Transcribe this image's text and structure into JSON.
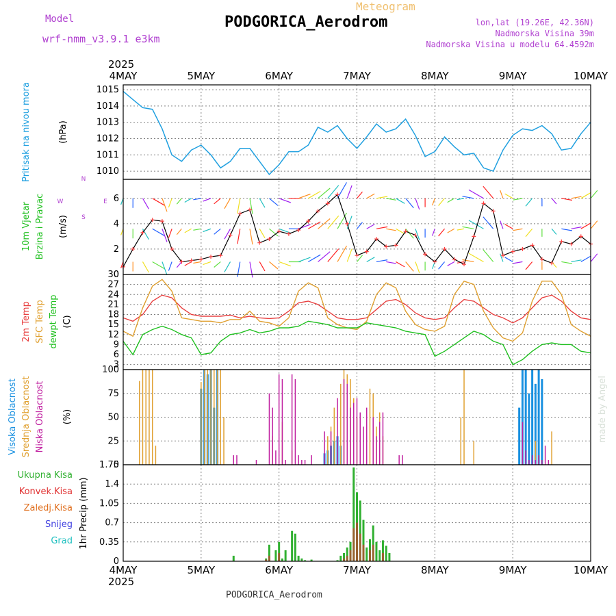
{
  "header": {
    "title": "PODGORICA_Aerodrom",
    "subtitle": "Meteogram",
    "model_label": "Model",
    "model_name": "wrf-nmm_v3.9.1 e3km",
    "lonlat": "lon,lat (19.26E, 42.36N)",
    "altitude": "Nadmorska Visina 39m",
    "model_altitude": "Nadmorska Visina u modelu 64.4592m",
    "footer": "PODGORICA_Aerodrom",
    "credit": "made by Angel",
    "year_top": "2025",
    "year_bottom": "2025"
  },
  "colors": {
    "pressure": "#20a0e0",
    "temp2m": "#e84040",
    "sfc_temp": "#e0a030",
    "dewpt": "#20c020",
    "wind_speed": "#000000",
    "wind_marker": "#ff4040",
    "high_cloud": "#1890e0",
    "mid_cloud": "#e0a030",
    "low_cloud": "#c020a0",
    "total_precip": "#30b030",
    "conv_precip": "#e03030",
    "frozen_precip": "#e07020",
    "snow": "#4040e0",
    "graupel": "#20c0c0",
    "grid": "#808080"
  },
  "chart_data": [
    {
      "type": "line",
      "panel": "pressure",
      "ylabel": "Pritisak na nivou mora",
      "yunit": "(hPa)",
      "ylim": [
        1009.5,
        1015.3
      ],
      "yticks": [
        "1010",
        "1011",
        "1012",
        "1013",
        "1014",
        "1015"
      ],
      "xticks": [
        "4MAY",
        "5MAY",
        "6MAY",
        "7MAY",
        "8MAY",
        "9MAY",
        "10MAY"
      ],
      "x_unit": "hours from 4MAY 00UTC",
      "x": [
        0,
        3,
        6,
        9,
        12,
        15,
        18,
        21,
        24,
        27,
        30,
        33,
        36,
        39,
        42,
        45,
        48,
        51,
        54,
        57,
        60,
        63,
        66,
        69,
        72,
        75,
        78,
        81,
        84,
        87,
        90,
        93,
        96,
        99,
        102,
        105,
        108,
        111,
        114,
        117,
        120,
        123,
        126,
        129,
        132,
        135,
        138,
        141,
        144
      ],
      "values": [
        1014.9,
        1014.4,
        1013.9,
        1013.8,
        1012.6,
        1011.0,
        1010.6,
        1011.3,
        1011.6,
        1011.0,
        1010.2,
        1010.6,
        1011.4,
        1011.4,
        1010.6,
        1009.8,
        1010.4,
        1011.2,
        1011.2,
        1011.6,
        1012.7,
        1012.4,
        1012.8,
        1012.0,
        1011.4,
        1012.1,
        1012.9,
        1012.4,
        1012.6,
        1013.2,
        1012.2,
        1010.9,
        1011.2,
        1012.1,
        1011.5,
        1011.0,
        1011.1,
        1010.2,
        1010.0,
        1011.3,
        1012.2,
        1012.6,
        1012.5,
        1012.8,
        1012.3,
        1011.3,
        1011.4,
        1012.3,
        1013.0
      ]
    },
    {
      "type": "line",
      "panel": "wind",
      "ylabel": [
        "10m Vjetar",
        "Brzina i Pravac"
      ],
      "yunit": "(m/s)",
      "ylim": [
        0,
        7.5
      ],
      "yticks": [
        "0",
        "2",
        "4",
        "6"
      ],
      "compass": [
        "N",
        "W",
        "E",
        "S"
      ],
      "x_unit": "hours from 4MAY 00UTC",
      "x": [
        0,
        3,
        6,
        9,
        12,
        15,
        18,
        21,
        24,
        27,
        30,
        33,
        36,
        39,
        42,
        45,
        48,
        51,
        54,
        57,
        60,
        63,
        66,
        69,
        72,
        75,
        78,
        81,
        84,
        87,
        90,
        93,
        96,
        99,
        102,
        105,
        108,
        111,
        114,
        117,
        120,
        123,
        126,
        129,
        132,
        135,
        138,
        141,
        144
      ],
      "values": [
        0.6,
        2.0,
        3.3,
        4.3,
        4.2,
        2.0,
        1.0,
        1.1,
        1.2,
        1.4,
        1.5,
        3.1,
        4.8,
        5.1,
        2.5,
        2.8,
        3.4,
        3.2,
        3.5,
        4.2,
        5.0,
        5.6,
        6.3,
        4.0,
        1.5,
        1.8,
        2.8,
        2.2,
        2.3,
        3.4,
        3.1,
        1.6,
        1.0,
        2.0,
        1.2,
        0.8,
        3.0,
        5.6,
        5.0,
        1.5,
        1.8,
        2.0,
        2.3,
        1.2,
        0.9,
        2.6,
        2.4,
        3.0,
        2.4
      ],
      "directions_deg": [
        200,
        180,
        150,
        120,
        160,
        200,
        220,
        240,
        260,
        250,
        230,
        210,
        190,
        170,
        150,
        130,
        110,
        90,
        70,
        60,
        50,
        40,
        30,
        20,
        40,
        60,
        80,
        100,
        120,
        140,
        160,
        180,
        200,
        220,
        240,
        260,
        280,
        300,
        320,
        340,
        300,
        260,
        220,
        180,
        140,
        100,
        80,
        60,
        40
      ]
    },
    {
      "type": "line",
      "panel": "temperature",
      "ylabel": [
        "2m Temp",
        "SFC Temp",
        "dewpt Temp"
      ],
      "yunit": "(C)",
      "ylim": [
        1.5,
        30
      ],
      "yticks": [
        "3",
        "6",
        "9",
        "12",
        "15",
        "18",
        "21",
        "24",
        "27",
        "30"
      ],
      "x_unit": "hours from 4MAY 00UTC",
      "series": [
        {
          "name": "2m Temp",
          "x": [
            0,
            3,
            6,
            9,
            12,
            15,
            18,
            21,
            24,
            27,
            30,
            33,
            36,
            39,
            42,
            45,
            48,
            51,
            54,
            57,
            60,
            63,
            66,
            69,
            72,
            75,
            78,
            81,
            84,
            87,
            90,
            93,
            96,
            99,
            102,
            105,
            108,
            111,
            114,
            117,
            120,
            123,
            126,
            129,
            132,
            135,
            138,
            141,
            144
          ],
          "values": [
            17,
            16,
            18,
            22,
            23.8,
            23,
            20,
            18,
            17.5,
            17.5,
            17.5,
            17.8,
            17,
            17.5,
            17,
            16.8,
            17,
            19,
            21.5,
            22,
            21,
            19,
            17,
            16.5,
            16.5,
            17,
            19.5,
            22,
            22.5,
            21,
            18.5,
            17,
            16.5,
            17,
            20,
            22.5,
            22,
            20,
            18,
            17,
            15.5,
            17,
            20,
            23,
            23.8,
            22,
            19,
            17,
            16.5
          ]
        },
        {
          "name": "SFC Temp",
          "x": [
            0,
            3,
            6,
            9,
            12,
            15,
            18,
            21,
            24,
            27,
            30,
            33,
            36,
            39,
            42,
            45,
            48,
            51,
            54,
            57,
            60,
            63,
            66,
            69,
            72,
            75,
            78,
            81,
            84,
            87,
            90,
            93,
            96,
            99,
            102,
            105,
            108,
            111,
            114,
            117,
            120,
            123,
            126,
            129,
            132,
            135,
            138,
            141,
            144
          ],
          "values": [
            13,
            11.5,
            20,
            26.5,
            28.5,
            25,
            17,
            16.5,
            16,
            16,
            15.5,
            16.5,
            16.5,
            19,
            16,
            15.5,
            14.5,
            17,
            25,
            27.5,
            26,
            17,
            15,
            14,
            13.5,
            16,
            24,
            27.5,
            26,
            19,
            15,
            13.5,
            13,
            14.5,
            24,
            28,
            27,
            19,
            14,
            11,
            10,
            12.5,
            22,
            28,
            28,
            24,
            15,
            13,
            11.5
          ]
        },
        {
          "name": "dewpt Temp",
          "x": [
            0,
            3,
            6,
            9,
            12,
            15,
            18,
            21,
            24,
            27,
            30,
            33,
            36,
            39,
            42,
            45,
            48,
            51,
            54,
            57,
            60,
            63,
            66,
            69,
            72,
            75,
            78,
            81,
            84,
            87,
            90,
            93,
            96,
            99,
            102,
            105,
            108,
            111,
            114,
            117,
            120,
            123,
            126,
            129,
            132,
            135,
            138,
            141,
            144
          ],
          "values": [
            10,
            6,
            12,
            13.5,
            14.5,
            13.5,
            12,
            11,
            6,
            6.5,
            10,
            12,
            12.5,
            13.5,
            12.5,
            13,
            14,
            14,
            14.5,
            16,
            15.5,
            15,
            14,
            14,
            14,
            15.5,
            15,
            14.5,
            14,
            13,
            12.5,
            12,
            5.5,
            7,
            9,
            11,
            13,
            12,
            10,
            9,
            3,
            4.5,
            7,
            9,
            9.5,
            9,
            9,
            7,
            6.5
          ]
        }
      ]
    },
    {
      "type": "bar",
      "panel": "cloud",
      "ylabel": [
        "Visoka Oblacnost",
        "Srednja Oblacnost",
        "Niska Oblacnost"
      ],
      "yunit": "(%)",
      "ylim": [
        0,
        100
      ],
      "yticks": [
        "0",
        "25",
        "50",
        "75",
        "100"
      ],
      "x_unit": "hours from 4MAY 00UTC",
      "series": [
        {
          "name": "Visoka Oblacnost",
          "x": [
            24,
            25,
            26,
            27,
            28,
            29,
            62,
            63,
            64,
            65,
            66,
            67,
            122,
            123,
            124,
            125,
            126,
            127,
            128,
            129
          ],
          "values": [
            80,
            100,
            95,
            100,
            60,
            100,
            12,
            15,
            20,
            25,
            30,
            20,
            60,
            100,
            100,
            75,
            100,
            85,
            100,
            90
          ]
        },
        {
          "name": "Srednja Oblacnost",
          "x": [
            5,
            6,
            7,
            8,
            9,
            10,
            24,
            25,
            26,
            27,
            28,
            29,
            30,
            31,
            46,
            49,
            52,
            63,
            64,
            65,
            67,
            68,
            69,
            70,
            71,
            72,
            73,
            75,
            76,
            77,
            78,
            79,
            80,
            104,
            105,
            108,
            127,
            128,
            129,
            132
          ],
          "values": [
            88,
            100,
            100,
            100,
            100,
            20,
            87,
            100,
            100,
            100,
            100,
            100,
            100,
            50,
            30,
            45,
            15,
            30,
            40,
            60,
            85,
            100,
            95,
            90,
            70,
            50,
            35,
            55,
            80,
            75,
            40,
            55,
            30,
            50,
            100,
            25,
            25,
            10,
            5,
            35
          ]
        },
        {
          "name": "Niska Oblacnost",
          "x": [
            34,
            35,
            41,
            45,
            46,
            47,
            48,
            49,
            50,
            52,
            53,
            54,
            55,
            56,
            58,
            62,
            64,
            66,
            68,
            69,
            70,
            71,
            72,
            73,
            74,
            75,
            77,
            78,
            79,
            80,
            85,
            86,
            123,
            124,
            125,
            126,
            127,
            128,
            129,
            130,
            131
          ],
          "values": [
            10,
            10,
            5,
            75,
            60,
            15,
            95,
            90,
            5,
            95,
            90,
            10,
            5,
            5,
            10,
            35,
            35,
            70,
            90,
            85,
            60,
            65,
            70,
            55,
            40,
            60,
            50,
            30,
            45,
            55,
            10,
            10,
            45,
            15,
            5,
            10,
            5,
            10,
            5,
            20,
            5
          ]
        }
      ]
    },
    {
      "type": "bar",
      "panel": "precip",
      "ylabel": "1hr Precip (mm)",
      "yticks": [
        "0",
        "0.35",
        "0.7",
        "1.05",
        "1.4",
        "1.75"
      ],
      "ylim": [
        0,
        1.75
      ],
      "legend": [
        "Ukupna Kisa",
        "Konvek.Kisa",
        "Zaledj.Kisa",
        "Snijeg",
        "Grad"
      ],
      "x_unit": "hours from 4MAY 00UTC",
      "series": [
        {
          "name": "Ukupna Kisa",
          "x": [
            34,
            44,
            45,
            47,
            48,
            49,
            50,
            52,
            53,
            54,
            55,
            56,
            58,
            66,
            67,
            68,
            69,
            70,
            71,
            72,
            73,
            74,
            75,
            76,
            77,
            78,
            79,
            80,
            81,
            82
          ],
          "values": [
            0.1,
            0.05,
            0.3,
            0.2,
            0.35,
            0.05,
            0.2,
            0.55,
            0.5,
            0.1,
            0.05,
            0.02,
            0.03,
            0.02,
            0.1,
            0.15,
            0.25,
            0.35,
            1.7,
            1.25,
            1.1,
            0.75,
            0.25,
            0.4,
            0.65,
            0.35,
            0.2,
            0.38,
            0.28,
            0.15
          ]
        },
        {
          "name": "Konvek.Kisa",
          "x": [
            44,
            45,
            48,
            68,
            69,
            70,
            71,
            72,
            73,
            74,
            76,
            77,
            80
          ],
          "values": [
            0.03,
            0.1,
            0.15,
            0.05,
            0.1,
            0.2,
            0.6,
            0.7,
            0.5,
            0.3,
            0.2,
            0.3,
            0.15
          ]
        }
      ]
    }
  ]
}
